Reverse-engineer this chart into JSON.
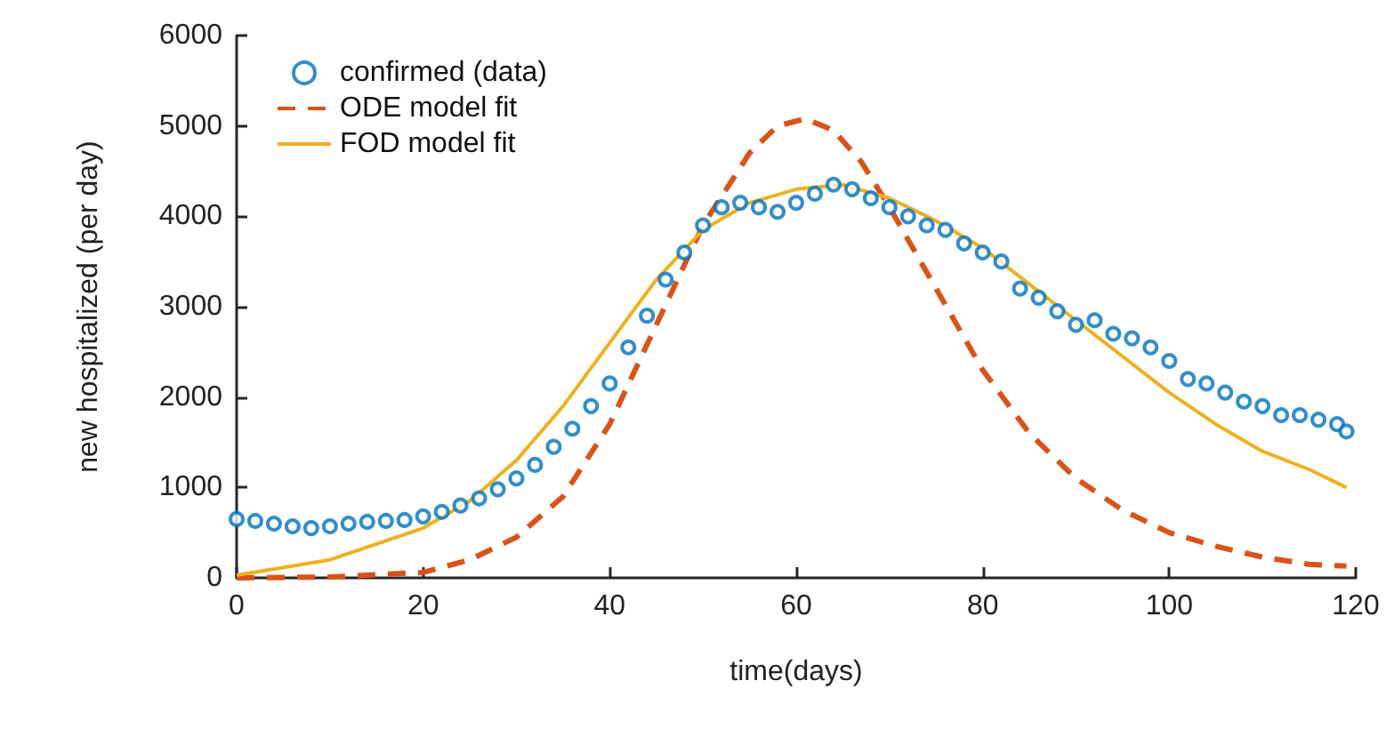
{
  "chart_data": {
    "type": "line",
    "xlabel": "time(days)",
    "ylabel": "new hospitalized (per day)",
    "xlim": [
      0,
      120
    ],
    "xticks": [
      0,
      20,
      40,
      60,
      80,
      100,
      120
    ],
    "ylim": [
      0,
      6000
    ],
    "yticks": [
      0,
      1000,
      2000,
      3000,
      4000,
      5000,
      6000
    ],
    "grid": false,
    "legend": "top left",
    "series": [
      {
        "name": "confirmed (data)",
        "type": "scatter",
        "marker": "circle",
        "color": "#0072bd",
        "x": [
          0,
          2,
          4,
          6,
          8,
          10,
          12,
          14,
          16,
          18,
          20,
          22,
          24,
          26,
          28,
          30,
          32,
          34,
          36,
          38,
          40,
          42,
          44,
          46,
          48,
          50,
          52,
          54,
          56,
          58,
          60,
          62,
          64,
          66,
          68,
          70,
          72,
          74,
          76,
          78,
          80,
          82,
          84,
          86,
          88,
          90,
          92,
          94,
          96,
          98,
          100,
          102,
          104,
          106,
          108,
          110,
          112,
          114,
          116,
          118,
          119
        ],
        "values": [
          650,
          630,
          600,
          570,
          550,
          570,
          600,
          620,
          630,
          640,
          680,
          730,
          800,
          880,
          980,
          1100,
          1250,
          1450,
          1650,
          1900,
          2150,
          2550,
          2900,
          3300,
          3600,
          3900,
          4100,
          4150,
          4100,
          4050,
          4150,
          4250,
          4350,
          4300,
          4200,
          4100,
          4000,
          3900,
          3850,
          3700,
          3600,
          3500,
          3200,
          3100,
          2950,
          2800,
          2850,
          2700,
          2650,
          2550,
          2400,
          2200,
          2150,
          2050,
          1950,
          1900,
          1800,
          1800,
          1750,
          1700,
          1620
        ]
      },
      {
        "name": "ODE model fit",
        "type": "line",
        "line_style": "dashed",
        "color": "#d95319",
        "x": [
          0,
          10,
          20,
          25,
          30,
          35,
          40,
          45,
          50,
          55,
          58,
          61,
          64,
          67,
          70,
          75,
          80,
          85,
          90,
          95,
          100,
          105,
          110,
          115,
          119
        ],
        "values": [
          0,
          10,
          60,
          200,
          450,
          900,
          1700,
          2800,
          3900,
          4700,
          5000,
          5080,
          4950,
          4600,
          4100,
          3200,
          2300,
          1600,
          1100,
          750,
          500,
          350,
          230,
          150,
          130
        ]
      },
      {
        "name": "FOD model fit",
        "type": "line",
        "line_style": "solid",
        "color": "#edb120",
        "x": [
          0,
          10,
          20,
          25,
          30,
          35,
          40,
          45,
          50,
          55,
          60,
          65,
          70,
          75,
          80,
          85,
          90,
          95,
          100,
          105,
          110,
          115,
          119
        ],
        "values": [
          30,
          200,
          550,
          850,
          1300,
          1900,
          2600,
          3300,
          3850,
          4150,
          4300,
          4350,
          4200,
          3950,
          3650,
          3250,
          2850,
          2450,
          2050,
          1700,
          1400,
          1200,
          1000
        ]
      }
    ]
  }
}
